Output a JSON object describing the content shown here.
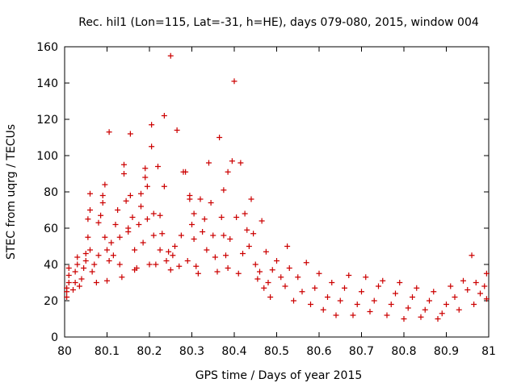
{
  "chart_data": {
    "type": "scatter",
    "title": "Rec. hil1 (Lon=115, Lat=-31, h=HE), days 079-080, 2015, window 004",
    "xlabel": "GPS time / Days of year 2015",
    "ylabel": "STEC from uqrg / TECUs",
    "xlim": [
      80,
      81
    ],
    "ylim": [
      0,
      160
    ],
    "xticks": [
      80,
      80.1,
      80.2,
      80.3,
      80.4,
      80.5,
      80.6,
      80.7,
      80.8,
      80.9,
      81
    ],
    "xtick_labels": [
      "80",
      "80.1",
      "80.2",
      "80.3",
      "80.4",
      "80.5",
      "80.6",
      "80.7",
      "80.8",
      "80.9",
      "81"
    ],
    "yticks": [
      0,
      20,
      40,
      60,
      80,
      100,
      120,
      140,
      160
    ],
    "ytick_labels": [
      "0",
      "20",
      "40",
      "60",
      "80",
      "100",
      "120",
      "140",
      "160"
    ],
    "grid": false,
    "legend": "none",
    "marker": "plus",
    "color": "#cc0000",
    "points": [
      [
        80.005,
        22
      ],
      [
        80.005,
        25
      ],
      [
        80.005,
        27
      ],
      [
        80.01,
        30
      ],
      [
        80.01,
        34
      ],
      [
        80.01,
        38
      ],
      [
        80.02,
        26
      ],
      [
        80.025,
        30
      ],
      [
        80.025,
        36
      ],
      [
        80.03,
        40
      ],
      [
        80.03,
        44
      ],
      [
        80.035,
        28
      ],
      [
        80.04,
        32
      ],
      [
        80.045,
        38
      ],
      [
        80.05,
        42
      ],
      [
        80.05,
        46
      ],
      [
        80.055,
        55
      ],
      [
        80.055,
        65
      ],
      [
        80.06,
        79
      ],
      [
        80.06,
        70
      ],
      [
        80.06,
        48
      ],
      [
        80.065,
        36
      ],
      [
        80.07,
        40
      ],
      [
        80.075,
        30
      ],
      [
        80.08,
        45
      ],
      [
        80.08,
        63
      ],
      [
        80.085,
        67
      ],
      [
        80.09,
        74
      ],
      [
        80.09,
        78
      ],
      [
        80.095,
        84
      ],
      [
        80.095,
        55
      ],
      [
        80.1,
        48
      ],
      [
        80.1,
        31
      ],
      [
        80.105,
        113
      ],
      [
        80.105,
        42
      ],
      [
        80.11,
        52
      ],
      [
        80.115,
        45
      ],
      [
        80.12,
        62
      ],
      [
        80.125,
        70
      ],
      [
        80.13,
        40
      ],
      [
        80.13,
        55
      ],
      [
        80.135,
        33
      ],
      [
        80.14,
        90
      ],
      [
        80.14,
        95
      ],
      [
        80.145,
        75
      ],
      [
        80.15,
        58
      ],
      [
        80.15,
        60
      ],
      [
        80.155,
        112
      ],
      [
        80.155,
        78
      ],
      [
        80.16,
        66
      ],
      [
        80.165,
        48
      ],
      [
        80.165,
        37
      ],
      [
        80.17,
        38
      ],
      [
        80.175,
        62
      ],
      [
        80.18,
        72
      ],
      [
        80.18,
        79
      ],
      [
        80.185,
        52
      ],
      [
        80.19,
        93
      ],
      [
        80.19,
        88
      ],
      [
        80.195,
        83
      ],
      [
        80.195,
        65
      ],
      [
        80.2,
        40
      ],
      [
        80.205,
        117
      ],
      [
        80.205,
        105
      ],
      [
        80.21,
        68
      ],
      [
        80.21,
        56
      ],
      [
        80.215,
        40
      ],
      [
        80.22,
        94
      ],
      [
        80.225,
        67
      ],
      [
        80.225,
        48
      ],
      [
        80.23,
        57
      ],
      [
        80.235,
        122
      ],
      [
        80.235,
        83
      ],
      [
        80.24,
        42
      ],
      [
        80.245,
        47
      ],
      [
        80.25,
        155
      ],
      [
        80.25,
        37
      ],
      [
        80.255,
        45
      ],
      [
        80.26,
        50
      ],
      [
        80.265,
        114
      ],
      [
        80.27,
        39
      ],
      [
        80.275,
        56
      ],
      [
        80.28,
        91
      ],
      [
        80.285,
        91
      ],
      [
        80.29,
        42
      ],
      [
        80.295,
        78
      ],
      [
        80.295,
        76
      ],
      [
        80.3,
        62
      ],
      [
        80.305,
        68
      ],
      [
        80.305,
        54
      ],
      [
        80.31,
        39
      ],
      [
        80.315,
        35
      ],
      [
        80.32,
        76
      ],
      [
        80.325,
        58
      ],
      [
        80.33,
        65
      ],
      [
        80.335,
        48
      ],
      [
        80.34,
        96
      ],
      [
        80.345,
        74
      ],
      [
        80.35,
        56
      ],
      [
        80.355,
        44
      ],
      [
        80.36,
        36
      ],
      [
        80.365,
        110
      ],
      [
        80.37,
        66
      ],
      [
        80.375,
        81
      ],
      [
        80.375,
        56
      ],
      [
        80.38,
        45
      ],
      [
        80.385,
        91
      ],
      [
        80.385,
        38
      ],
      [
        80.39,
        54
      ],
      [
        80.395,
        97
      ],
      [
        80.4,
        141
      ],
      [
        80.405,
        66
      ],
      [
        80.41,
        35
      ],
      [
        80.415,
        96
      ],
      [
        80.42,
        46
      ],
      [
        80.425,
        68
      ],
      [
        80.43,
        59
      ],
      [
        80.435,
        50
      ],
      [
        80.44,
        76
      ],
      [
        80.445,
        57
      ],
      [
        80.45,
        40
      ],
      [
        80.455,
        32
      ],
      [
        80.46,
        36
      ],
      [
        80.465,
        64
      ],
      [
        80.47,
        27
      ],
      [
        80.475,
        47
      ],
      [
        80.48,
        30
      ],
      [
        80.485,
        22
      ],
      [
        80.49,
        37
      ],
      [
        80.5,
        42
      ],
      [
        80.51,
        33
      ],
      [
        80.52,
        28
      ],
      [
        80.525,
        50
      ],
      [
        80.53,
        38
      ],
      [
        80.54,
        20
      ],
      [
        80.55,
        33
      ],
      [
        80.56,
        25
      ],
      [
        80.57,
        41
      ],
      [
        80.58,
        18
      ],
      [
        80.59,
        27
      ],
      [
        80.6,
        35
      ],
      [
        80.61,
        15
      ],
      [
        80.62,
        22
      ],
      [
        80.63,
        30
      ],
      [
        80.64,
        12
      ],
      [
        80.65,
        20
      ],
      [
        80.66,
        27
      ],
      [
        80.67,
        34
      ],
      [
        80.68,
        12
      ],
      [
        80.69,
        18
      ],
      [
        80.7,
        25
      ],
      [
        80.71,
        33
      ],
      [
        80.72,
        14
      ],
      [
        80.73,
        20
      ],
      [
        80.74,
        28
      ],
      [
        80.75,
        31
      ],
      [
        80.76,
        12
      ],
      [
        80.77,
        18
      ],
      [
        80.78,
        24
      ],
      [
        80.79,
        30
      ],
      [
        80.8,
        10
      ],
      [
        80.81,
        16
      ],
      [
        80.82,
        22
      ],
      [
        80.83,
        27
      ],
      [
        80.84,
        11
      ],
      [
        80.85,
        15
      ],
      [
        80.86,
        20
      ],
      [
        80.87,
        25
      ],
      [
        80.88,
        10
      ],
      [
        80.89,
        13
      ],
      [
        80.9,
        18
      ],
      [
        80.91,
        28
      ],
      [
        80.92,
        22
      ],
      [
        80.93,
        15
      ],
      [
        80.94,
        31
      ],
      [
        80.95,
        26
      ],
      [
        80.96,
        45
      ],
      [
        80.965,
        18
      ],
      [
        80.97,
        30
      ],
      [
        80.98,
        24
      ],
      [
        80.99,
        28
      ],
      [
        80.995,
        35
      ],
      [
        80.995,
        21
      ]
    ]
  }
}
